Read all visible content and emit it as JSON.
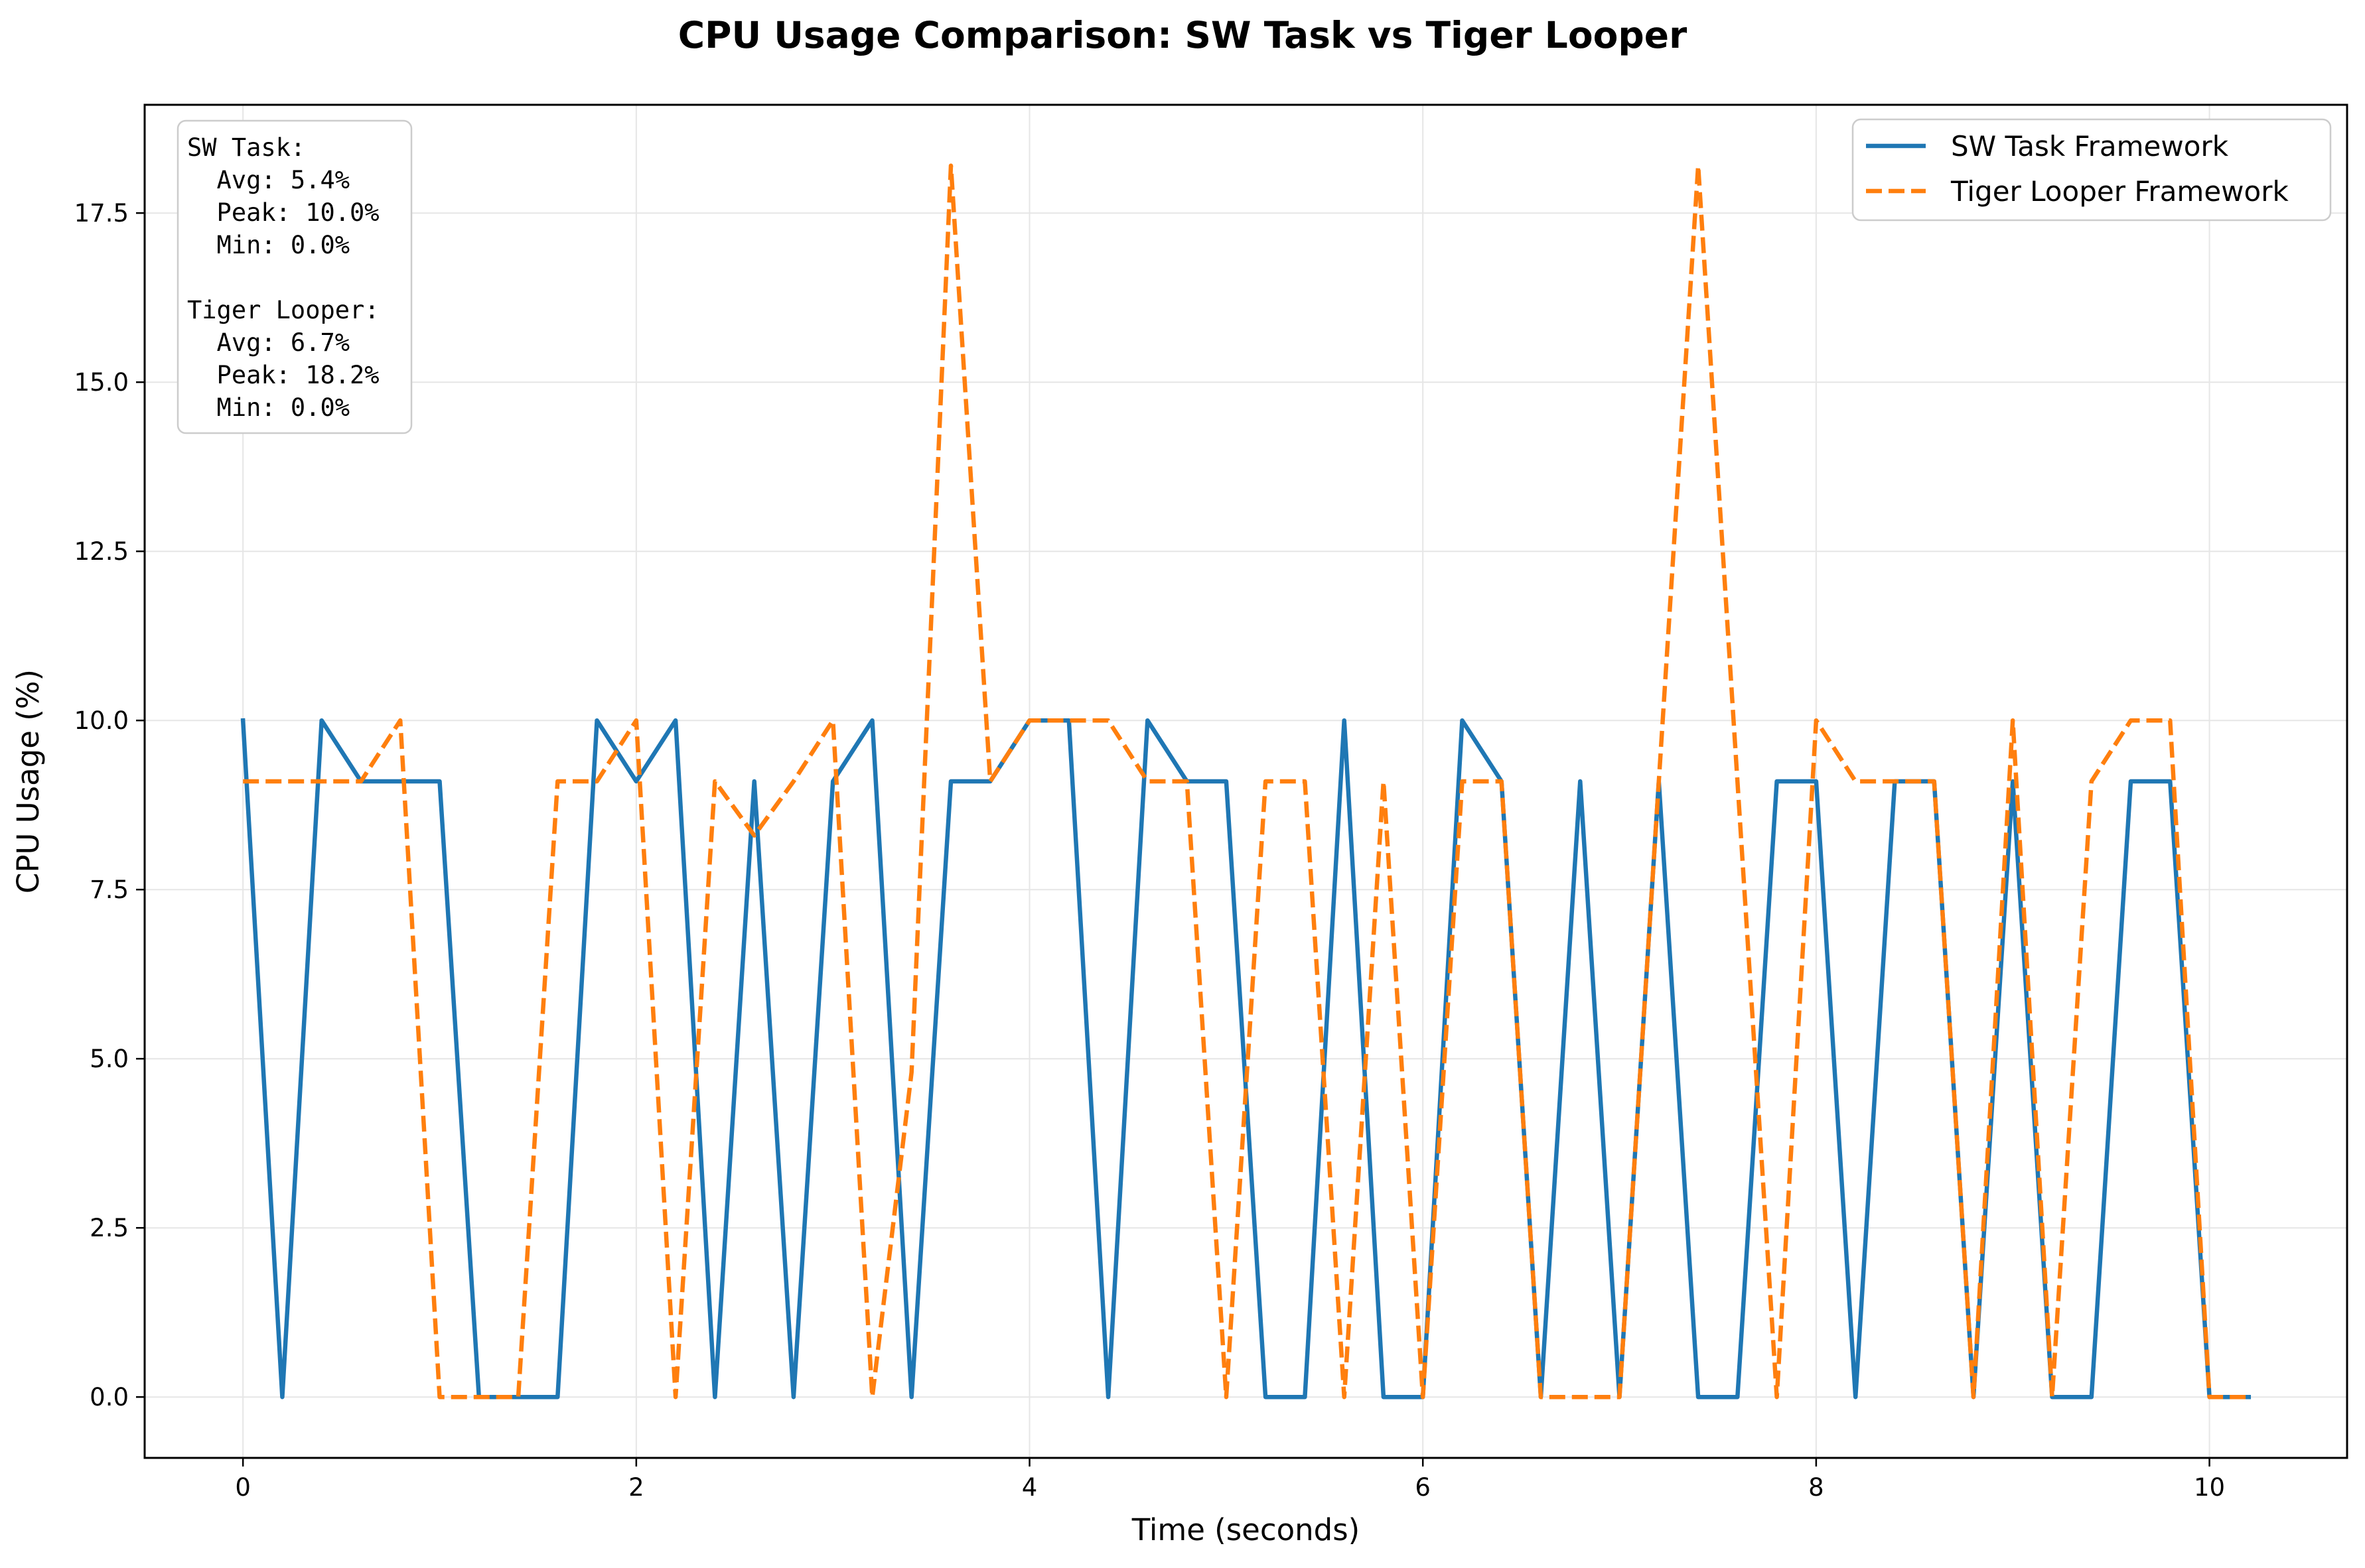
{
  "chart_data": {
    "type": "line",
    "title": "CPU Usage Comparison: SW Task vs Tiger Looper",
    "xlabel": "Time (seconds)",
    "ylabel": "CPU Usage (%)",
    "xlim": [
      -0.5,
      10.7
    ],
    "ylim": [
      -0.9,
      19.1
    ],
    "xticks": [
      0,
      2,
      4,
      6,
      8,
      10
    ],
    "xtick_labels": [
      "0",
      "2",
      "4",
      "6",
      "8",
      "10"
    ],
    "yticks": [
      0,
      2.5,
      5,
      7.5,
      10,
      12.5,
      15,
      17.5
    ],
    "ytick_labels": [
      "0.0",
      "2.5",
      "5.0",
      "7.5",
      "10.0",
      "12.5",
      "15.0",
      "17.5"
    ],
    "grid": true,
    "legend_position": "top-right",
    "x": [
      0,
      0.2,
      0.4,
      0.6,
      0.8,
      1.0,
      1.2,
      1.4,
      1.6,
      1.8,
      2.0,
      2.2,
      2.4,
      2.6,
      2.8,
      3.0,
      3.2,
      3.4,
      3.6,
      3.8,
      4.0,
      4.2,
      4.4,
      4.6,
      4.8,
      5.0,
      5.2,
      5.4,
      5.6,
      5.8,
      6.0,
      6.2,
      6.4,
      6.6,
      6.8,
      7.0,
      7.2,
      7.4,
      7.6,
      7.8,
      8.0,
      8.2,
      8.4,
      8.6,
      8.8,
      9.0,
      9.2,
      9.4,
      9.6,
      9.8,
      10.0,
      10.2
    ],
    "series": [
      {
        "name": "SW Task Framework",
        "color": "#1f77b4",
        "style": "solid",
        "values": [
          10.0,
          0.0,
          10.0,
          9.1,
          9.1,
          9.1,
          0.0,
          0.0,
          0.0,
          10.0,
          9.1,
          10.0,
          0.0,
          9.1,
          0.0,
          9.1,
          10.0,
          0.0,
          9.1,
          9.1,
          10.0,
          10.0,
          0.0,
          10.0,
          9.1,
          9.1,
          0.0,
          0.0,
          10.0,
          0.0,
          0.0,
          10.0,
          9.1,
          0.0,
          9.1,
          0.0,
          9.1,
          0.0,
          0.0,
          9.1,
          9.1,
          0.0,
          9.1,
          9.1,
          0.0,
          9.1,
          0.0,
          0.0,
          9.1,
          9.1,
          0.0,
          0.0
        ]
      },
      {
        "name": "Tiger Looper Framework",
        "color": "#ff7f0e",
        "style": "dashed",
        "values": [
          9.1,
          9.1,
          9.1,
          9.1,
          10.0,
          0.0,
          0.0,
          0.0,
          9.1,
          9.1,
          10.0,
          0.0,
          9.1,
          8.3,
          9.1,
          10.0,
          0.0,
          4.8,
          18.2,
          9.1,
          10.0,
          10.0,
          10.0,
          9.1,
          9.1,
          0.0,
          9.1,
          9.1,
          0.0,
          9.1,
          0.0,
          9.1,
          9.1,
          0.0,
          0.0,
          0.0,
          9.1,
          18.2,
          9.1,
          0.0,
          10.0,
          9.1,
          9.1,
          9.1,
          0.0,
          10.0,
          0.0,
          9.1,
          10.0,
          10.0,
          0.0,
          0.0
        ]
      }
    ],
    "stats_box": {
      "lines": [
        "SW Task:",
        "  Avg: 5.4%",
        "  Peak: 10.0%",
        "  Min: 0.0%",
        "",
        "Tiger Looper:",
        "  Avg: 6.7%",
        "  Peak: 18.2%",
        "  Min: 0.0%"
      ]
    }
  }
}
